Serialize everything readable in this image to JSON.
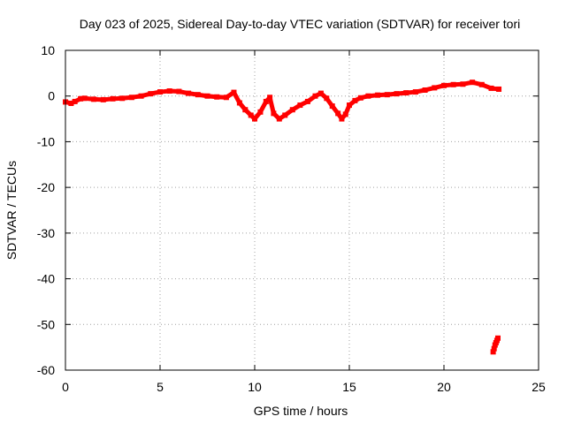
{
  "chart_data": {
    "type": "scatter",
    "title": "Day 023 of 2025, Sidereal Day-to-day VTEC variation (SDTVAR) for receiver tori",
    "xlabel": "GPS time / hours",
    "ylabel": "SDTVAR / TECUs",
    "xlim": [
      0,
      25
    ],
    "ylim": [
      -60,
      10
    ],
    "x_ticks": [
      "0",
      "5",
      "10",
      "15",
      "20",
      "25"
    ],
    "y_ticks": [
      "10",
      "0",
      "-10",
      "-20",
      "-30",
      "-40",
      "-50",
      "-60"
    ],
    "x_tick_values": [
      0,
      5,
      10,
      15,
      20,
      25
    ],
    "y_tick_values": [
      10,
      0,
      -10,
      -20,
      -30,
      -40,
      -50,
      -60
    ],
    "grid": true,
    "marker_color": "#ff0000",
    "series": [
      {
        "x": [
          0.0,
          0.3,
          0.5,
          0.8,
          1.0,
          1.5,
          2.0,
          2.5,
          3.0,
          3.5,
          4.0,
          4.5,
          5.0,
          5.5,
          6.0,
          6.5,
          7.0,
          7.5,
          8.0,
          8.5,
          8.9,
          9.2,
          9.5,
          9.8,
          10.0,
          10.3,
          10.6,
          10.8,
          11.0,
          11.3,
          11.6,
          12.0,
          12.4,
          12.8,
          13.2,
          13.5,
          13.8,
          14.1,
          14.4,
          14.6,
          14.8,
          15.0,
          15.3,
          15.6,
          16.0,
          16.5,
          17.0,
          17.5,
          18.0,
          18.5,
          19.0,
          19.5,
          20.0,
          20.5,
          21.0,
          21.5,
          22.0,
          22.5,
          22.9
        ],
        "y": [
          -1.3,
          -1.6,
          -1.2,
          -0.6,
          -0.5,
          -0.7,
          -0.8,
          -0.6,
          -0.5,
          -0.3,
          0.0,
          0.5,
          0.9,
          1.1,
          1.0,
          0.6,
          0.3,
          0.0,
          -0.2,
          -0.3,
          0.8,
          -1.5,
          -3.0,
          -4.2,
          -5.0,
          -3.5,
          -1.2,
          -0.3,
          -3.8,
          -5.0,
          -4.2,
          -3.0,
          -2.0,
          -1.2,
          0.0,
          0.6,
          -0.5,
          -2.2,
          -3.8,
          -5.0,
          -4.0,
          -2.0,
          -1.0,
          -0.4,
          0.0,
          0.2,
          0.3,
          0.5,
          0.7,
          0.9,
          1.3,
          1.8,
          2.3,
          2.5,
          2.6,
          3.0,
          2.5,
          1.7,
          1.5
        ]
      },
      {
        "x": [
          22.6,
          22.65,
          22.7,
          22.75,
          22.8,
          22.85
        ],
        "y": [
          -56.0,
          -55.3,
          -54.5,
          -54.0,
          -53.5,
          -53.0
        ]
      }
    ]
  }
}
